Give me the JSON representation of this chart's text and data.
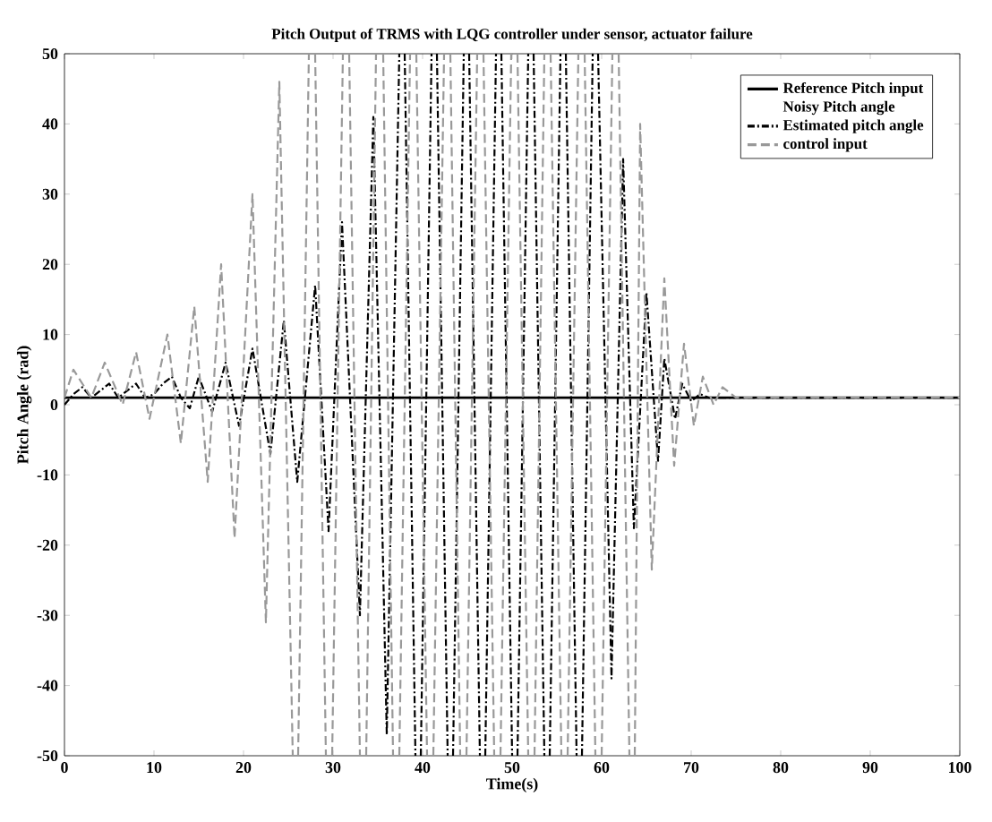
{
  "chart_data": {
    "type": "line",
    "title": "Pitch Output of TRMS with LQG controller under sensor, actuator failure",
    "xlabel": "Time(s)",
    "ylabel": "Pitch Angle (rad)",
    "xlim": [
      0,
      100
    ],
    "ylim": [
      -50,
      50
    ],
    "xticks": [
      0,
      10,
      20,
      30,
      40,
      50,
      60,
      70,
      80,
      90,
      100
    ],
    "yticks": [
      -50,
      -40,
      -30,
      -20,
      -10,
      0,
      10,
      20,
      30,
      40,
      50
    ],
    "grid": false,
    "legend": "top right",
    "marker": "none",
    "series": [
      {
        "name": "Reference Pitch input",
        "color": "#000000",
        "line_style": "solid",
        "x": [
          0,
          100
        ],
        "values": [
          1,
          1
        ]
      },
      {
        "name": "Noisy Pitch angle"
      },
      {
        "name": "Estimated pitch angle",
        "color": "#000000",
        "line_style": "dashdot",
        "x": [
          0,
          1,
          2,
          3,
          4,
          5,
          6,
          7,
          8,
          9,
          10,
          11,
          12,
          13,
          14,
          15,
          16.5,
          18,
          19.5,
          21,
          23,
          24.5,
          26,
          28,
          29.5,
          31,
          33,
          34.5,
          36,
          37.4,
          37.7,
          38.0,
          39.2,
          39.5,
          39.8,
          41.0,
          41.3,
          41.6,
          42.8,
          43.1,
          43.4,
          44.6,
          44.9,
          45.2,
          46.4,
          46.7,
          47.0,
          48.2,
          48.5,
          48.8,
          50.0,
          50.3,
          50.6,
          51.8,
          52.1,
          52.4,
          53.6,
          53.9,
          54.2,
          55.4,
          55.7,
          56.0,
          57.2,
          57.5,
          57.8,
          59.0,
          59.3,
          59.6,
          61.1,
          62.4,
          63.6,
          65,
          66.3,
          67,
          68.2,
          69,
          70,
          71,
          72,
          80,
          90,
          100
        ],
        "values": [
          0,
          1.5,
          2.5,
          1,
          2,
          3,
          1,
          2,
          3,
          1,
          1.5,
          3,
          4,
          1,
          -0.5,
          4,
          -1,
          6,
          -3,
          8,
          -7,
          12,
          -11,
          17,
          -18,
          26,
          -30,
          41,
          -47,
          50,
          null,
          50,
          -50,
          null,
          -50,
          50,
          null,
          50,
          -50,
          null,
          -50,
          50,
          null,
          50,
          -50,
          null,
          -50,
          50,
          null,
          50,
          -50,
          null,
          -50,
          50,
          null,
          50,
          -50,
          null,
          -50,
          50,
          null,
          50,
          -50,
          null,
          -50,
          50,
          null,
          50,
          -39,
          35,
          -17.6,
          16,
          -8,
          6.6,
          -2,
          3,
          0.5,
          1.5,
          1,
          1,
          1,
          1
        ]
      },
      {
        "name": "control input",
        "color": "#999999",
        "line_style": "dashed",
        "x": [
          0,
          1,
          3,
          4.5,
          6.5,
          8,
          9.5,
          11.5,
          13,
          14.5,
          16,
          17.5,
          19,
          21,
          22.5,
          24,
          25.5,
          25.8,
          26.1,
          27.3,
          27.7,
          28.0,
          29.2,
          29.6,
          29.9,
          31.1,
          31.4,
          31.8,
          33.0,
          33.3,
          33.7,
          34.8,
          35.2,
          35.6,
          36.7,
          37.1,
          37.4,
          38.6,
          39.0,
          39.3,
          40.5,
          40.8,
          41.2,
          42.4,
          42.7,
          43.1,
          44.2,
          44.6,
          44.9,
          46.1,
          46.5,
          46.8,
          48.0,
          48.4,
          48.7,
          49.9,
          50.2,
          50.6,
          51.8,
          52.1,
          52.5,
          53.6,
          54.0,
          54.3,
          55.5,
          55.9,
          56.2,
          57.4,
          57.8,
          58.1,
          59.3,
          59.6,
          60.0,
          61.2,
          61.5,
          61.9,
          63.1,
          63.4,
          63.7,
          64.3,
          65.6,
          67,
          68.1,
          69.2,
          70.3,
          71.3,
          72.5,
          73.5,
          75,
          100
        ],
        "values": [
          1,
          5,
          1,
          6,
          0,
          7.5,
          -2,
          10,
          -5.5,
          14,
          -11,
          20,
          -19,
          30,
          -31,
          46,
          -50,
          null,
          -50,
          50,
          null,
          50,
          -50,
          null,
          -50,
          50,
          null,
          50,
          -50,
          null,
          -50,
          50,
          null,
          50,
          -50,
          null,
          -50,
          50,
          null,
          50,
          -50,
          null,
          -50,
          50,
          null,
          50,
          -50,
          null,
          -50,
          50,
          null,
          50,
          -50,
          null,
          -50,
          50,
          null,
          50,
          -50,
          null,
          -50,
          50,
          null,
          50,
          -50,
          null,
          -50,
          50,
          null,
          50,
          -50,
          null,
          -50,
          50,
          null,
          50,
          -50,
          null,
          -50,
          40,
          -23.5,
          18,
          -8.7,
          8.7,
          -3,
          4,
          0,
          2.5,
          1,
          1
        ]
      }
    ]
  }
}
